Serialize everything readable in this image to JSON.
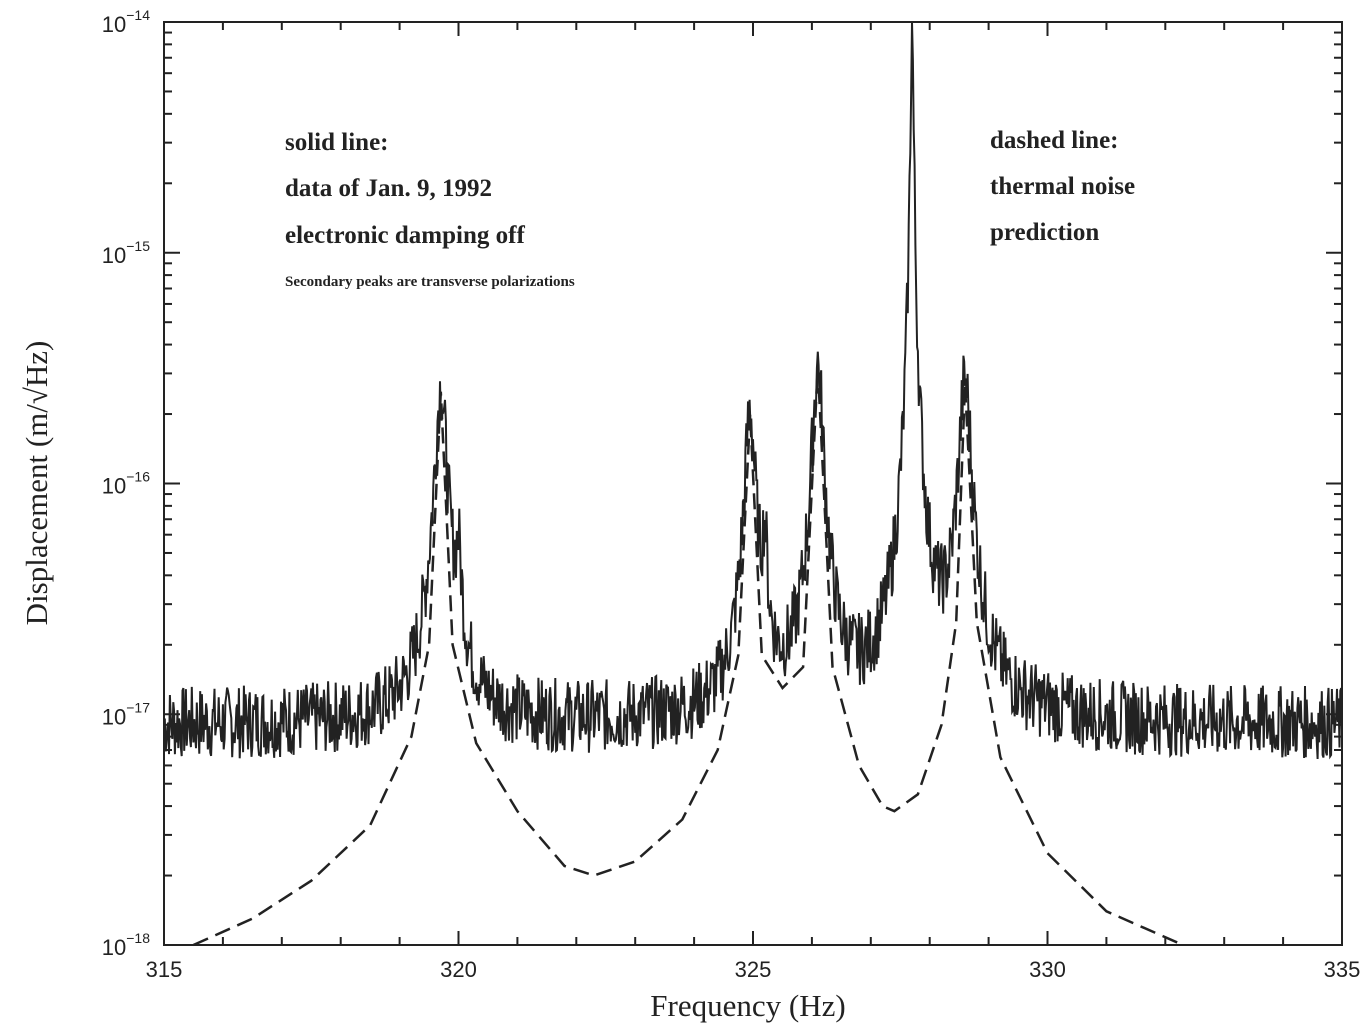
{
  "chart_data": {
    "type": "line",
    "xlabel": "Frequency (Hz)",
    "ylabel": "Displacement (m/√Hz)",
    "xlim": [
      315,
      335
    ],
    "ylim": [
      1e-18,
      1e-14
    ],
    "y_scale": "log",
    "x_ticks": [
      315,
      320,
      325,
      330,
      335
    ],
    "y_ticks": [
      {
        "base": "10",
        "exp": "−18",
        "value": 1e-18
      },
      {
        "base": "10",
        "exp": "−17",
        "value": 1e-17
      },
      {
        "base": "10",
        "exp": "−16",
        "value": 1e-16
      },
      {
        "base": "10",
        "exp": "−15",
        "value": 1e-15
      },
      {
        "base": "10",
        "exp": "−14",
        "value": 1e-14
      }
    ],
    "grid": false,
    "annotations": {
      "solid": [
        "solid line:",
        "data of Jan. 9, 1992",
        "electronic damping off"
      ],
      "secondary": "Secondary peaks are transverse polarizations",
      "dashed": [
        "dashed line:",
        "thermal noise",
        "prediction"
      ]
    },
    "series": [
      {
        "style": "solid",
        "baseline": 9e-18,
        "resonances": [
          {
            "f": 319.7,
            "peak": 2.5e-16,
            "width": 0.09
          },
          {
            "f": 320.0,
            "peak": 3e-17,
            "width": 0.05
          },
          {
            "f": 324.95,
            "peak": 2e-16,
            "width": 0.08
          },
          {
            "f": 325.2,
            "peak": 4e-17,
            "width": 0.04
          },
          {
            "f": 326.1,
            "peak": 3.2e-16,
            "width": 0.08
          },
          {
            "f": 327.7,
            "peak": 1e-14,
            "width": 0.02
          },
          {
            "f": 328.6,
            "peak": 2.7e-16,
            "width": 0.09
          }
        ]
      },
      {
        "style": "dashed",
        "points": [
          [
            315.5,
            1e-18
          ],
          [
            316.5,
            1.3e-18
          ],
          [
            317.5,
            1.9e-18
          ],
          [
            318.5,
            3.3e-18
          ],
          [
            319.2,
            8e-18
          ],
          [
            319.5,
            2e-17
          ],
          [
            319.7,
            2.5e-16
          ],
          [
            319.9,
            2e-17
          ],
          [
            320.3,
            7.5e-18
          ],
          [
            321.0,
            3.8e-18
          ],
          [
            321.8,
            2.2e-18
          ],
          [
            322.3,
            2e-18
          ],
          [
            323.0,
            2.3e-18
          ],
          [
            323.8,
            3.5e-18
          ],
          [
            324.4,
            7e-18
          ],
          [
            324.75,
            1.8e-17
          ],
          [
            324.95,
            2e-16
          ],
          [
            325.15,
            1.8e-17
          ],
          [
            325.5,
            1.3e-17
          ],
          [
            325.85,
            1.6e-17
          ],
          [
            326.1,
            3.2e-16
          ],
          [
            326.35,
            1.6e-17
          ],
          [
            326.8,
            6e-18
          ],
          [
            327.2,
            4e-18
          ],
          [
            327.4,
            3.8e-18
          ],
          [
            327.8,
            4.5e-18
          ],
          [
            328.2,
            9e-18
          ],
          [
            328.45,
            2.5e-17
          ],
          [
            328.6,
            2.7e-16
          ],
          [
            328.8,
            2.5e-17
          ],
          [
            329.2,
            6.5e-18
          ],
          [
            330.0,
            2.5e-18
          ],
          [
            331.0,
            1.4e-18
          ],
          [
            332.3,
            1e-18
          ]
        ]
      }
    ]
  }
}
